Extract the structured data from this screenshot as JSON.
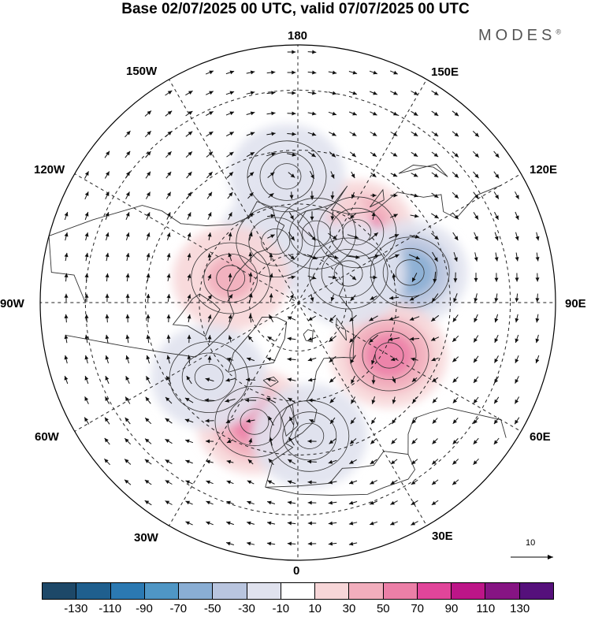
{
  "title": "Base 02/07/2025 00 UTC, valid 07/07/2025 00 UTC",
  "brand": "MODES",
  "brand_mark": "®",
  "longitude_labels": {
    "lon_180": "180",
    "lon_150E": "150E",
    "lon_120E": "120E",
    "lon_90E": "90E",
    "lon_60E": "60E",
    "lon_30E": "30E",
    "lon_0": "0",
    "lon_30W": "30W",
    "lon_60W": "60W",
    "lon_90W": "90W",
    "lon_120W": "120W",
    "lon_150W": "150W"
  },
  "vector_key_label": "10",
  "colorbar": {
    "colors": [
      "#1d4868",
      "#1f5f8e",
      "#2b79b2",
      "#4f96c5",
      "#8aaed4",
      "#b9c5df",
      "#e0e2ee",
      "#ffffff",
      "#f7d6d8",
      "#f2aebd",
      "#ec7fa7",
      "#e1459a",
      "#bd1588",
      "#861483",
      "#55107b"
    ],
    "labels": [
      "-130",
      "-110",
      "-90",
      "-70",
      "-50",
      "-30",
      "-10",
      "10",
      "30",
      "50",
      "70",
      "90",
      "110",
      "130"
    ]
  },
  "anomaly_centers": [
    {
      "sign": "positive",
      "value": 70,
      "lon": 140,
      "lat": 62
    },
    {
      "sign": "negative",
      "value": -70,
      "lon": 105,
      "lat": 55
    },
    {
      "sign": "positive",
      "value": 50,
      "lon": 60,
      "lat": 58
    },
    {
      "sign": "positive",
      "value": 50,
      "lon": -20,
      "lat": 52
    },
    {
      "sign": "positive",
      "value": 30,
      "lon": 165,
      "lat": 68
    },
    {
      "sign": "negative",
      "value": -30,
      "lon": -175,
      "lat": 52
    },
    {
      "sign": "negative",
      "value": -30,
      "lon": -160,
      "lat": 70
    },
    {
      "sign": "positive",
      "value": 30,
      "lon": -110,
      "lat": 68
    },
    {
      "sign": "negative",
      "value": -30,
      "lon": 5,
      "lat": 50
    },
    {
      "sign": "negative",
      "value": -30,
      "lon": -50,
      "lat": 55
    },
    {
      "sign": "negative",
      "value": -30,
      "lon": 120,
      "lat": 72
    }
  ]
}
